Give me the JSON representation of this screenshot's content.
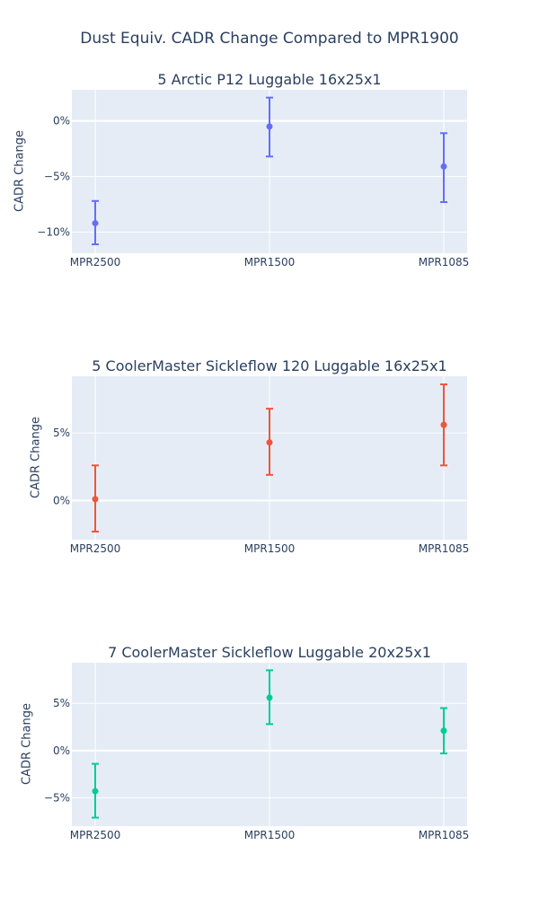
{
  "title": "Dust Equiv. CADR Change Compared to MPR1900",
  "chart_data": [
    {
      "type": "scatter",
      "title": "5 Arctic P12 Luggable 16x25x1",
      "xlabel": "",
      "ylabel": "CADR Change",
      "categories": [
        "MPR2500",
        "MPR1500",
        "MPR1085"
      ],
      "values": [
        -9.2,
        -0.5,
        -4.1
      ],
      "error_upper": [
        -7.2,
        2.1,
        -1.1
      ],
      "error_lower": [
        -11.1,
        -3.2,
        -7.3
      ],
      "color": "#636efa",
      "ylim": [
        -11.9,
        2.8
      ],
      "yticks": [
        0,
        -5,
        -10
      ],
      "ytick_labels": [
        "0%",
        "−5%",
        "−10%"
      ],
      "grid": true
    },
    {
      "type": "scatter",
      "title": "5 CoolerMaster Sickleflow 120 Luggable 16x25x1",
      "xlabel": "",
      "ylabel": "CADR Change",
      "categories": [
        "MPR2500",
        "MPR1500",
        "MPR1085"
      ],
      "values": [
        0.1,
        4.3,
        5.6
      ],
      "error_upper": [
        2.6,
        6.8,
        8.6
      ],
      "error_lower": [
        -2.3,
        1.9,
        2.6
      ],
      "color": "#ef553b",
      "ylim": [
        -2.9,
        9.2
      ],
      "yticks": [
        0,
        5
      ],
      "ytick_labels": [
        "0%",
        "5%"
      ],
      "grid": true
    },
    {
      "type": "scatter",
      "title": "7 CoolerMaster Sickleflow Luggable 20x25x1",
      "xlabel": "",
      "ylabel": "CADR Change",
      "categories": [
        "MPR2500",
        "MPR1500",
        "MPR1085"
      ],
      "values": [
        -4.3,
        5.6,
        2.1
      ],
      "error_upper": [
        -1.4,
        8.5,
        4.5
      ],
      "error_lower": [
        -7.1,
        2.8,
        -0.3
      ],
      "color": "#00cc96",
      "ylim": [
        -8.0,
        9.3
      ],
      "yticks": [
        -5,
        0,
        5
      ],
      "ytick_labels": [
        "−5%",
        "0%",
        "5%"
      ],
      "grid": true
    }
  ]
}
